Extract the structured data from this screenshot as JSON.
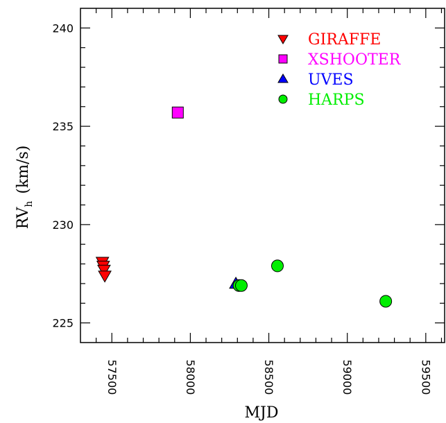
{
  "chart_data": {
    "type": "scatter",
    "xlabel": "MJD",
    "ylabel": "RV",
    "ylabel_sub": "h",
    "ylabel_unit": "(km/s)",
    "xlim": [
      57300,
      59620
    ],
    "ylim": [
      224,
      241
    ],
    "x_ticks": [
      57500,
      58000,
      58500,
      59000,
      59500
    ],
    "y_ticks": [
      225,
      230,
      235,
      240
    ],
    "legend_position": "top-right",
    "series": [
      {
        "name": "GIRAFFE",
        "marker": "triangle-down",
        "color": "#ff0000",
        "points": [
          {
            "x": 57440,
            "y": 228.1
          },
          {
            "x": 57445,
            "y": 227.9
          },
          {
            "x": 57450,
            "y": 227.7
          },
          {
            "x": 57455,
            "y": 227.4
          }
        ]
      },
      {
        "name": "XSHOOTER",
        "marker": "square",
        "color": "#ff00ff",
        "points": [
          {
            "x": 57920,
            "y": 235.7
          }
        ]
      },
      {
        "name": "UVES",
        "marker": "triangle-up",
        "color": "#0000ff",
        "points": [
          {
            "x": 58290,
            "y": 227.0
          }
        ]
      },
      {
        "name": "HARPS",
        "marker": "circle",
        "color": "#00ee00",
        "points": [
          {
            "x": 58310,
            "y": 226.9
          },
          {
            "x": 58325,
            "y": 226.9
          },
          {
            "x": 58555,
            "y": 227.9
          },
          {
            "x": 59245,
            "y": 226.1
          }
        ]
      }
    ]
  }
}
